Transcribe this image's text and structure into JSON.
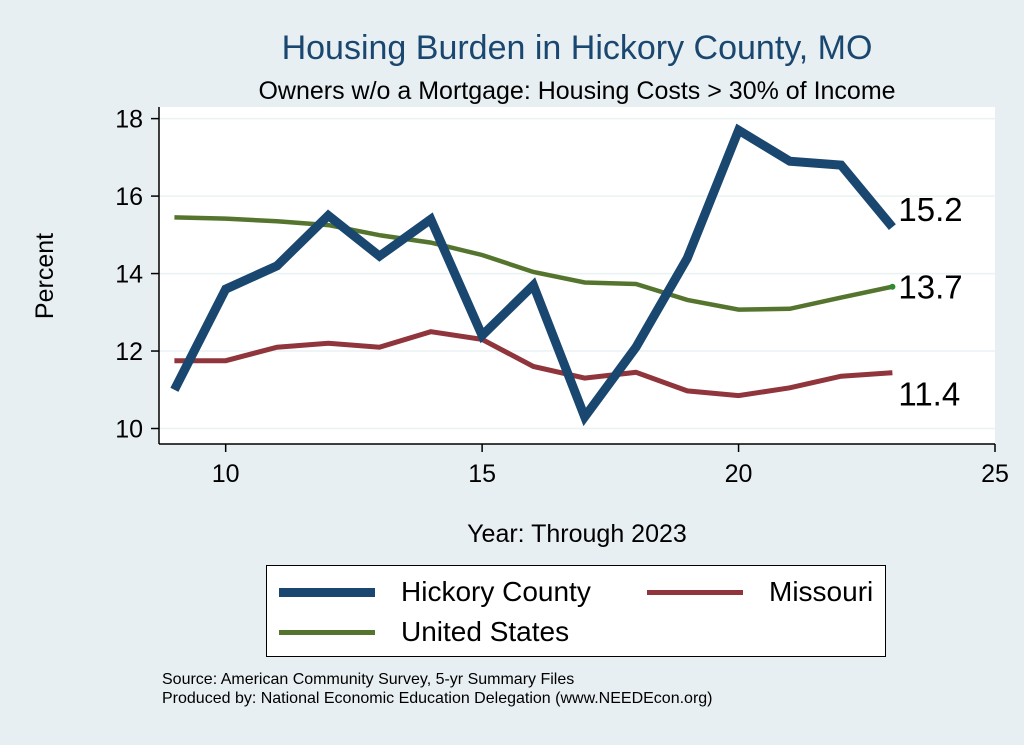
{
  "chart_data": {
    "type": "line",
    "title": "Housing Burden in Hickory County, MO",
    "subtitle": "Owners w/o a Mortgage: Housing Costs > 30% of Income",
    "xlabel": "Year: Through 2023",
    "ylabel": "Percent",
    "xlim": [
      8.7,
      25
    ],
    "ylim": [
      9.6,
      18.3
    ],
    "xticks": [
      10,
      15,
      20,
      25
    ],
    "yticks": [
      10,
      12,
      14,
      16,
      18
    ],
    "grid": true,
    "legend_position": "bottom",
    "x": [
      9,
      10,
      11,
      12,
      13,
      14,
      15,
      16,
      17,
      18,
      19,
      20,
      21,
      22,
      23
    ],
    "series": [
      {
        "name": "Hickory County",
        "color": "#1a476f",
        "values": [
          11.0,
          13.6,
          14.2,
          15.5,
          14.45,
          15.4,
          12.4,
          13.7,
          10.3,
          12.1,
          14.4,
          17.7,
          16.9,
          16.8,
          15.2
        ],
        "end_label": "15.2"
      },
      {
        "name": "Missouri",
        "color": "#90353b",
        "values": [
          11.75,
          11.75,
          12.1,
          12.2,
          12.1,
          12.5,
          12.3,
          11.6,
          11.3,
          11.45,
          10.97,
          10.85,
          11.05,
          11.35,
          11.44
        ],
        "end_label": "11.4"
      },
      {
        "name": "United States",
        "color": "#55752f",
        "values": [
          15.45,
          15.42,
          15.35,
          15.25,
          14.99,
          14.8,
          14.48,
          14.04,
          13.77,
          13.73,
          13.32,
          13.07,
          13.09,
          13.38,
          13.66
        ],
        "end_label": "13.7"
      }
    ],
    "legend_rows": [
      [
        "Hickory County",
        "Missouri"
      ],
      [
        "United States"
      ]
    ]
  },
  "source": {
    "line1": "Source: American Community Survey, 5-yr Summary Files",
    "line2": "Produced by: National Economic Education Delegation (www.NEEDEcon.org)"
  }
}
